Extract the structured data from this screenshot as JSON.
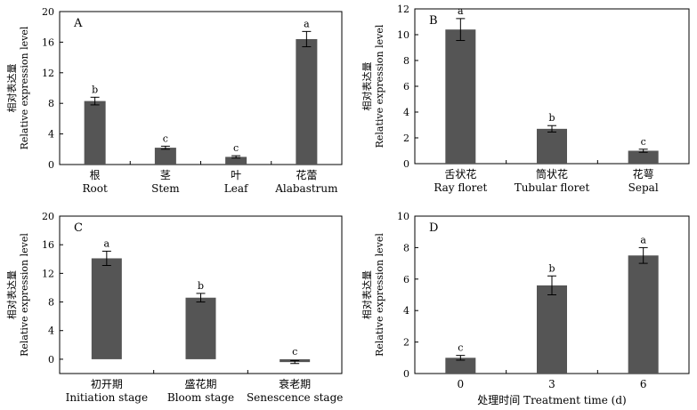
{
  "colors": {
    "bar": "#555555",
    "axis": "#000000"
  },
  "chart_data": [
    {
      "type": "bar",
      "panel": "A",
      "title": "",
      "ylabel_cn": "相对表达量",
      "ylabel": "Relative expression level",
      "xlabel": "",
      "ylim": [
        0,
        20
      ],
      "yticks": [
        0,
        4,
        8,
        12,
        16,
        20
      ],
      "categories": [
        {
          "cn": "根",
          "en": "Root"
        },
        {
          "cn": "茎",
          "en": "Stem"
        },
        {
          "cn": "叶",
          "en": "Leaf"
        },
        {
          "cn": "花蕾",
          "en": "Alabastrum"
        }
      ],
      "values": [
        8.3,
        2.2,
        1.0,
        16.4
      ],
      "errors": [
        0.5,
        0.2,
        0.15,
        1.0
      ],
      "significance": [
        "b",
        "c",
        "c",
        "a"
      ]
    },
    {
      "type": "bar",
      "panel": "B",
      "title": "",
      "ylabel_cn": "相对表达量",
      "ylabel": "Relative expression level",
      "xlabel": "",
      "ylim": [
        0,
        12
      ],
      "yticks": [
        0,
        2,
        4,
        6,
        8,
        10,
        12
      ],
      "categories": [
        {
          "cn": "舌状花",
          "en": "Ray floret"
        },
        {
          "cn": "筒状花",
          "en": "Tubular floret"
        },
        {
          "cn": "花萼",
          "en": "Sepal"
        }
      ],
      "values": [
        10.4,
        2.7,
        1.0
      ],
      "errors": [
        0.85,
        0.25,
        0.12
      ],
      "significance": [
        "a",
        "b",
        "c"
      ]
    },
    {
      "type": "bar",
      "panel": "C",
      "title": "",
      "ylabel_cn": "相对表达量",
      "ylabel": "Relative expression level",
      "xlabel": "",
      "ylim": [
        -2,
        20
      ],
      "yticks": [
        0,
        4,
        8,
        12,
        16,
        20
      ],
      "categories": [
        {
          "cn": "初开期",
          "en": "Initiation stage"
        },
        {
          "cn": "盛花期",
          "en": "Bloom stage"
        },
        {
          "cn": "衰老期",
          "en": "Senescence stage"
        }
      ],
      "values": [
        14.1,
        8.6,
        -0.4
      ],
      "errors": [
        1.0,
        0.6,
        0.2
      ],
      "significance": [
        "a",
        "b",
        "c"
      ]
    },
    {
      "type": "bar",
      "panel": "D",
      "title": "",
      "ylabel_cn": "相对表达量",
      "ylabel": "Relative expression level",
      "xlabel": "处理时间 Treatment time (d)",
      "ylim": [
        0,
        10
      ],
      "yticks": [
        0,
        2,
        4,
        6,
        8,
        10
      ],
      "categories": [
        {
          "cn": "",
          "en": "0"
        },
        {
          "cn": "",
          "en": "3"
        },
        {
          "cn": "",
          "en": "6"
        }
      ],
      "values": [
        1.0,
        5.6,
        7.5
      ],
      "errors": [
        0.15,
        0.6,
        0.5
      ],
      "significance": [
        "c",
        "b",
        "a"
      ]
    }
  ]
}
